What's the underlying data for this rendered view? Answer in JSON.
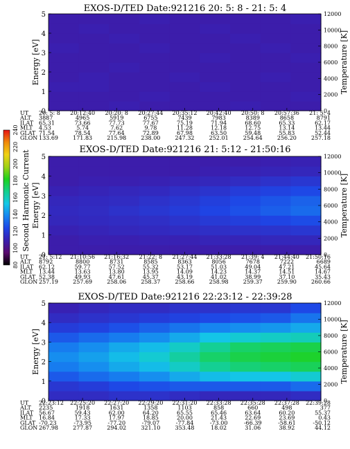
{
  "colorbar": {
    "label": "Second Harmonic Current",
    "ticks": [
      "80",
      "100",
      "120",
      "140",
      "160",
      "180",
      "200",
      "220",
      "240"
    ],
    "colors": [
      "#000000",
      "#5a0a6e",
      "#3a1fb0",
      "#1e46e6",
      "#1686f0",
      "#14c8e6",
      "#14d08c",
      "#1ed21e",
      "#a0d214",
      "#f0d214",
      "#f08a0a",
      "#e61414"
    ]
  },
  "y_left": {
    "label": "Energy [eV]",
    "ticks": [
      "0",
      "1",
      "2",
      "3",
      "4",
      "5"
    ]
  },
  "y_right": {
    "label": "Temperature [K]",
    "ticks": [
      "0",
      "2000",
      "4000",
      "6000",
      "8000",
      "10000",
      "12000"
    ]
  },
  "orbit_labels": [
    "UT",
    "ALT",
    "ILAT",
    "MLT",
    "GLAT",
    "GLON"
  ],
  "panels": [
    {
      "title": "EXOS-D/TED   Date:921216  20: 5: 8 - 21: 5: 4",
      "ut": [
        "20: 5: 8",
        "20:12:40",
        "20:20: 8",
        "20:27:44",
        "20:35:12",
        "20:42:40",
        "20:50: 8",
        "20:57:36",
        "21: 5: 4"
      ],
      "rows": [
        [
          "3887",
          "4965",
          "5919",
          "6755",
          "7439",
          "7983",
          "8389",
          "8658",
          "8791"
        ],
        [
          "65.31",
          "73.66",
          "77.73",
          "77.67",
          "75.19",
          "71.94",
          "68.60",
          "65.33",
          "62.17"
        ],
        [
          "4.53",
          "5.74",
          "7.62",
          "9.78",
          "11.28",
          "12.18",
          "12.75",
          "13.14",
          "13.44"
        ],
        [
          "71.54",
          "78.54",
          "77.64",
          "72.89",
          "67.98",
          "63.50",
          "59.48",
          "55.83",
          "52.44"
        ],
        [
          "133.69",
          "171.83",
          "215.98",
          "238.00",
          "247.32",
          "252.01",
          "254.64",
          "256.20",
          "257.18"
        ]
      ]
    },
    {
      "title": "EXOS-D/TED   Date:921216  21: 5:12 - 21:50:16",
      "ut": [
        "21: 5:12",
        "21:10:56",
        "21:16:32",
        "21:22: 8",
        "21:27:44",
        "21:33:28",
        "21:39: 4",
        "21:44:40",
        "21:50:16"
      ],
      "rows": [
        [
          "8792",
          "8800",
          "8731",
          "8585",
          "8363",
          "8056",
          "7678",
          "7222",
          "6689"
        ],
        [
          "62.12",
          "59.77",
          "57.52",
          "55.32",
          "53.17",
          "51.03",
          "49.04",
          "47.21",
          "45.64"
        ],
        [
          "13.44",
          "13.63",
          "13.80",
          "13.95",
          "14.09",
          "14.23",
          "14.37",
          "14.51",
          "14.67"
        ],
        [
          "52.38",
          "49.93",
          "47.61",
          "45.37",
          "43.19",
          "41.02",
          "38.99",
          "37.10",
          "35.43"
        ],
        [
          "257.19",
          "257.69",
          "258.06",
          "258.37",
          "258.66",
          "258.98",
          "259.37",
          "259.90",
          "260.66"
        ]
      ]
    },
    {
      "title": "EXOS-D/TED   Date:921216  22:23:12 - 22:39:28",
      "ut": [
        "22:23:12",
        "22:25:20",
        "22:27:20",
        "22:29:20",
        "22:31:20",
        "22:33:28",
        "22:35:28",
        "22:37:28",
        "22:39:28"
      ],
      "rows": [
        [
          "2235",
          "1918",
          "1631",
          "1358",
          "1103",
          "858",
          "660",
          "498",
          "377"
        ],
        [
          "56.67",
          "59.43",
          "62.00",
          "64.20",
          "65.55",
          "65.46",
          "63.64",
          "60.20",
          "55.37"
        ],
        [
          "16.84",
          "17.33",
          "17.97",
          "18.85",
          "20.00",
          "21.43",
          "22.69",
          "23.69",
          "0.43"
        ],
        [
          "-70.23",
          "-73.95",
          "-77.20",
          "-79.07",
          "-77.84",
          "-73.00",
          "-66.39",
          "-58.61",
          "-50.12"
        ],
        [
          "267.98",
          "277.87",
          "294.02",
          "321.10",
          "353.48",
          "18.02",
          "31.06",
          "38.92",
          "44.12"
        ]
      ]
    }
  ],
  "chart_data": [
    {
      "type": "heatmap",
      "title": "EXOS-D/TED   Date:921216  20: 5: 8 - 21: 5: 4",
      "x": [
        "20: 5: 8",
        "20:12:40",
        "20:20: 8",
        "20:27:44",
        "20:35:12",
        "20:42:40",
        "20:50: 8",
        "20:57:36",
        "21: 5: 4"
      ],
      "ylabel": "Energy [eV]",
      "ylim": [
        0,
        5
      ],
      "y2label": "Temperature [K]",
      "y2lim": [
        0,
        12000
      ],
      "colorbar_label": "Second Harmonic Current",
      "zlim": [
        80,
        240
      ],
      "energy_bands": [
        0.25,
        0.75,
        1.25,
        1.75,
        2.25,
        2.75,
        3.25,
        3.75,
        4.25,
        4.75
      ],
      "values": [
        [
          108,
          108,
          109,
          108,
          108,
          108,
          109,
          108,
          108,
          108
        ],
        [
          108,
          108,
          109,
          109,
          108,
          108,
          108,
          108,
          109,
          108
        ],
        [
          109,
          108,
          108,
          108,
          109,
          108,
          108,
          109,
          108,
          108
        ],
        [
          108,
          109,
          108,
          108,
          108,
          108,
          109,
          108,
          108,
          109
        ],
        [
          108,
          108,
          108,
          109,
          108,
          108,
          108,
          108,
          108,
          108
        ],
        [
          108,
          108,
          109,
          108,
          108,
          109,
          108,
          108,
          109,
          108
        ],
        [
          109,
          108,
          108,
          108,
          108,
          108,
          108,
          109,
          108,
          108
        ],
        [
          108,
          108,
          108,
          109,
          108,
          108,
          109,
          108,
          108,
          108
        ],
        [
          108,
          109,
          108,
          108,
          108,
          109,
          108,
          108,
          108,
          109
        ]
      ]
    },
    {
      "type": "heatmap",
      "title": "EXOS-D/TED   Date:921216  21: 5:12 - 21:50:16",
      "x": [
        "21: 5:12",
        "21:10:56",
        "21:16:32",
        "21:22: 8",
        "21:27:44",
        "21:33:28",
        "21:39: 4",
        "21:44:40",
        "21:50:16"
      ],
      "ylabel": "Energy [eV]",
      "ylim": [
        0,
        5
      ],
      "y2label": "Temperature [K]",
      "y2lim": [
        0,
        12000
      ],
      "colorbar_label": "Second Harmonic Current",
      "zlim": [
        80,
        240
      ],
      "energy_bands": [
        0.25,
        0.75,
        1.25,
        1.75,
        2.25,
        2.75,
        3.25,
        3.75,
        4.25,
        4.75
      ],
      "values": [
        [
          108,
          108,
          110,
          112,
          113,
          112,
          110,
          108,
          108,
          108
        ],
        [
          108,
          109,
          111,
          113,
          114,
          113,
          111,
          109,
          108,
          108
        ],
        [
          108,
          109,
          112,
          114,
          116,
          114,
          112,
          109,
          108,
          108
        ],
        [
          108,
          110,
          113,
          115,
          118,
          116,
          113,
          110,
          108,
          108
        ],
        [
          108,
          110,
          114,
          117,
          120,
          118,
          115,
          111,
          108,
          108
        ],
        [
          108,
          111,
          115,
          119,
          123,
          121,
          117,
          112,
          109,
          108
        ],
        [
          108,
          111,
          116,
          121,
          126,
          124,
          120,
          114,
          110,
          108
        ],
        [
          108,
          112,
          117,
          123,
          129,
          127,
          122,
          116,
          111,
          109
        ],
        [
          108,
          112,
          118,
          125,
          132,
          130,
          124,
          118,
          112,
          110
        ]
      ]
    },
    {
      "type": "heatmap",
      "title": "EXOS-D/TED   Date:921216  22:23:12 - 22:39:28",
      "x": [
        "22:23:12",
        "22:25:20",
        "22:27:20",
        "22:29:20",
        "22:31:20",
        "22:33:28",
        "22:35:28",
        "22:37:28",
        "22:39:28"
      ],
      "ylabel": "Energy [eV]",
      "ylim": [
        0,
        5
      ],
      "y2label": "Temperature [K]",
      "y2lim": [
        0,
        12000
      ],
      "colorbar_label": "Second Harmonic Current",
      "zlim": [
        80,
        240
      ],
      "energy_bands": [
        0.25,
        0.75,
        1.25,
        1.75,
        2.25,
        2.75,
        3.25,
        3.75,
        4.25,
        4.75
      ],
      "values": [
        [
          114,
          118,
          128,
          136,
          140,
          136,
          128,
          120,
          114,
          110
        ],
        [
          114,
          120,
          132,
          140,
          144,
          140,
          132,
          122,
          116,
          112
        ],
        [
          116,
          124,
          136,
          146,
          150,
          146,
          136,
          126,
          118,
          114
        ],
        [
          116,
          126,
          140,
          150,
          156,
          150,
          140,
          130,
          120,
          114
        ],
        [
          114,
          128,
          146,
          158,
          164,
          158,
          146,
          134,
          122,
          116
        ],
        [
          112,
          128,
          150,
          166,
          172,
          166,
          152,
          138,
          124,
          116
        ],
        [
          112,
          128,
          152,
          170,
          176,
          172,
          156,
          140,
          126,
          118
        ],
        [
          112,
          128,
          152,
          172,
          178,
          174,
          158,
          142,
          128,
          118
        ],
        [
          114,
          132,
          156,
          174,
          180,
          176,
          160,
          146,
          134,
          124
        ]
      ]
    }
  ]
}
